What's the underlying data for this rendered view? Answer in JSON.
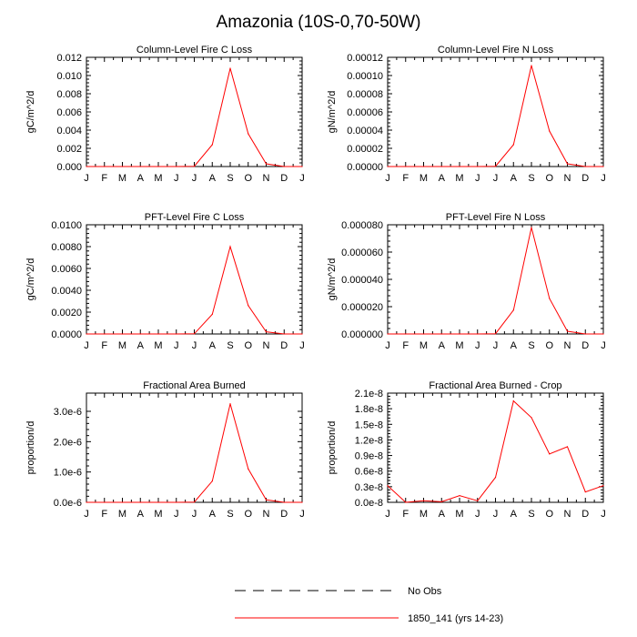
{
  "title": "Amazonia (10S-0,70-50W)",
  "legend": {
    "entries": [
      {
        "label": "No Obs",
        "style": "dashed",
        "color": "#000000"
      },
      {
        "label": "1850_141 (yrs 14-23)",
        "style": "solid",
        "color": "#ff0000"
      }
    ]
  },
  "chart_data": [
    {
      "type": "line",
      "title": "Column-Level Fire C Loss",
      "ylabel": "gC/m^2/d",
      "categories": [
        "J",
        "F",
        "M",
        "A",
        "M",
        "J",
        "J",
        "A",
        "S",
        "O",
        "N",
        "D",
        "J"
      ],
      "ylim": [
        0,
        0.012
      ],
      "yticks": [
        0,
        0.002,
        0.004,
        0.006,
        0.008,
        0.01,
        0.012
      ],
      "ytick_labels": [
        "0.000",
        "0.002",
        "0.004",
        "0.006",
        "0.008",
        "0.010",
        "0.012"
      ],
      "series": [
        {
          "color": "#ff0000",
          "values": [
            0,
            0,
            0,
            0,
            0,
            0,
            3e-05,
            0.0024,
            0.0108,
            0.0036,
            0.0003,
            0,
            0
          ]
        }
      ]
    },
    {
      "type": "line",
      "title": "Column-Level Fire N Loss",
      "ylabel": "gN/m^2/d",
      "categories": [
        "J",
        "F",
        "M",
        "A",
        "M",
        "J",
        "J",
        "A",
        "S",
        "O",
        "N",
        "D",
        "J"
      ],
      "ylim": [
        0,
        0.00012
      ],
      "yticks": [
        0,
        2e-05,
        4e-05,
        6e-05,
        8e-05,
        0.0001,
        0.00012
      ],
      "ytick_labels": [
        "0.00000",
        "0.00002",
        "0.00004",
        "0.00006",
        "0.00008",
        "0.00010",
        "0.00012"
      ],
      "series": [
        {
          "color": "#ff0000",
          "values": [
            0,
            0,
            0,
            0,
            0,
            0,
            3e-07,
            2.4e-05,
            0.000111,
            3.9e-05,
            3e-06,
            0,
            0
          ]
        }
      ]
    },
    {
      "type": "line",
      "title": "PFT-Level Fire C Loss",
      "ylabel": "gC/m^2/d",
      "categories": [
        "J",
        "F",
        "M",
        "A",
        "M",
        "J",
        "J",
        "A",
        "S",
        "O",
        "N",
        "D",
        "J"
      ],
      "ylim": [
        0,
        0.01
      ],
      "yticks": [
        0,
        0.002,
        0.004,
        0.006,
        0.008,
        0.01
      ],
      "ytick_labels": [
        "0.0000",
        "0.0020",
        "0.0040",
        "0.0060",
        "0.0080",
        "0.0100"
      ],
      "series": [
        {
          "color": "#ff0000",
          "values": [
            0,
            0,
            0,
            0,
            0,
            0,
            2e-05,
            0.0018,
            0.008,
            0.0026,
            0.0002,
            0,
            0
          ]
        }
      ]
    },
    {
      "type": "line",
      "title": "PFT-Level Fire N Loss",
      "ylabel": "gN/m^2/d",
      "categories": [
        "J",
        "F",
        "M",
        "A",
        "M",
        "J",
        "J",
        "A",
        "S",
        "O",
        "N",
        "D",
        "J"
      ],
      "ylim": [
        0,
        8e-05
      ],
      "yticks": [
        0,
        2e-05,
        4e-05,
        6e-05,
        8e-05
      ],
      "ytick_labels": [
        "0.000000",
        "0.000020",
        "0.000040",
        "0.000060",
        "0.000080"
      ],
      "series": [
        {
          "color": "#ff0000",
          "values": [
            0,
            0,
            0,
            0,
            0,
            0,
            2e-07,
            1.75e-05,
            7.8e-05,
            2.6e-05,
            2e-06,
            0,
            0
          ]
        }
      ]
    },
    {
      "type": "line",
      "title": "Fractional Area Burned",
      "ylabel": "proportion/d",
      "categories": [
        "J",
        "F",
        "M",
        "A",
        "M",
        "J",
        "J",
        "A",
        "S",
        "O",
        "N",
        "D",
        "J"
      ],
      "ylim": [
        0,
        3.6e-06
      ],
      "yticks": [
        0,
        1e-06,
        2e-06,
        3e-06
      ],
      "ytick_labels": [
        "0.0e-6",
        "1.0e-6",
        "2.0e-6",
        "3.0e-6"
      ],
      "series": [
        {
          "color": "#ff0000",
          "values": [
            0,
            0,
            0,
            0,
            0,
            0,
            1e-08,
            7e-07,
            3.25e-06,
            1.1e-06,
            8e-08,
            0,
            0
          ]
        }
      ]
    },
    {
      "type": "line",
      "title": "Fractional Area Burned - Crop",
      "ylabel": "proportion/d",
      "categories": [
        "J",
        "F",
        "M",
        "A",
        "M",
        "J",
        "J",
        "A",
        "S",
        "O",
        "N",
        "D",
        "J"
      ],
      "ylim": [
        0,
        2.1e-08
      ],
      "yticks": [
        0,
        3e-09,
        6e-09,
        9e-09,
        1.2e-08,
        1.5e-08,
        1.8e-08,
        2.1e-08
      ],
      "ytick_labels": [
        "0.0e-8",
        "0.3e-8",
        "0.6e-8",
        "0.9e-8",
        "1.2e-8",
        "1.5e-8",
        "1.8e-8",
        "2.1e-8"
      ],
      "series": [
        {
          "color": "#ff0000",
          "values": [
            3.2e-09,
            0.0,
            3e-10,
            1e-10,
            1.3e-09,
            3e-10,
            4.8e-09,
            1.95e-08,
            1.63e-08,
            9.3e-09,
            1.07e-08,
            2e-09,
            3.2e-09
          ]
        }
      ]
    }
  ]
}
